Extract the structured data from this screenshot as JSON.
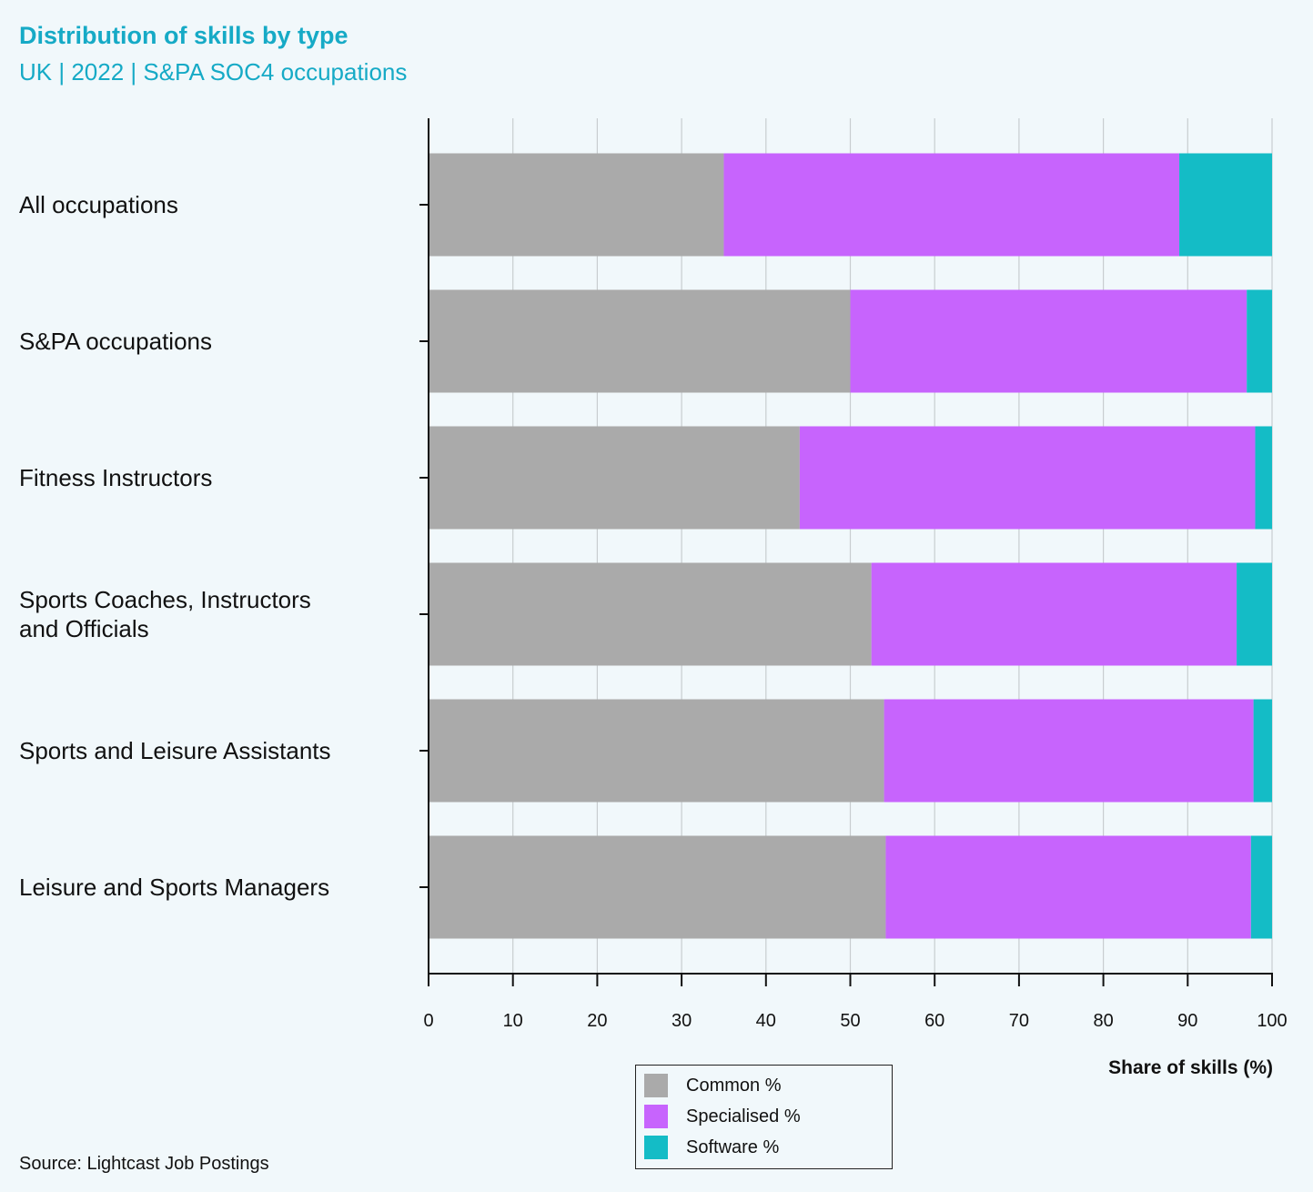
{
  "chart_data": {
    "type": "bar",
    "orientation": "horizontal",
    "stacked": true,
    "title": "Distribution of skills by type",
    "subtitle": "UK | 2022 | S&PA SOC4 occupations",
    "xlabel": "Share of skills (%)",
    "ylabel": "",
    "xlim": [
      0,
      100
    ],
    "xticks": [
      0,
      10,
      20,
      30,
      40,
      50,
      60,
      70,
      80,
      90,
      100
    ],
    "grid": true,
    "legend_position": "bottom-center",
    "categories": [
      "All occupations",
      "S&PA occupations",
      "Fitness Instructors",
      "Sports Coaches, Instructors and Officials",
      "Sports and Leisure Assistants",
      "Leisure and Sports Managers"
    ],
    "category_label_lines": [
      [
        "All occupations"
      ],
      [
        "S&PA occupations"
      ],
      [
        "Fitness Instructors"
      ],
      [
        "Sports Coaches, Instructors",
        "and Officials"
      ],
      [
        "Sports and Leisure Assistants"
      ],
      [
        "Leisure and Sports Managers"
      ]
    ],
    "series": [
      {
        "name": "Common %",
        "color": "#aaaaaa",
        "values": [
          35,
          50,
          44,
          52.5,
          54,
          54.2
        ]
      },
      {
        "name": "Specialised %",
        "color": "#c764fd",
        "values": [
          54,
          47,
          54,
          43.3,
          43.8,
          43.3
        ]
      },
      {
        "name": "Software %",
        "color": "#14bcc6",
        "values": [
          11,
          3,
          2,
          4.2,
          2.2,
          2.5
        ]
      }
    ]
  },
  "source": "Source: Lightcast Job Postings"
}
